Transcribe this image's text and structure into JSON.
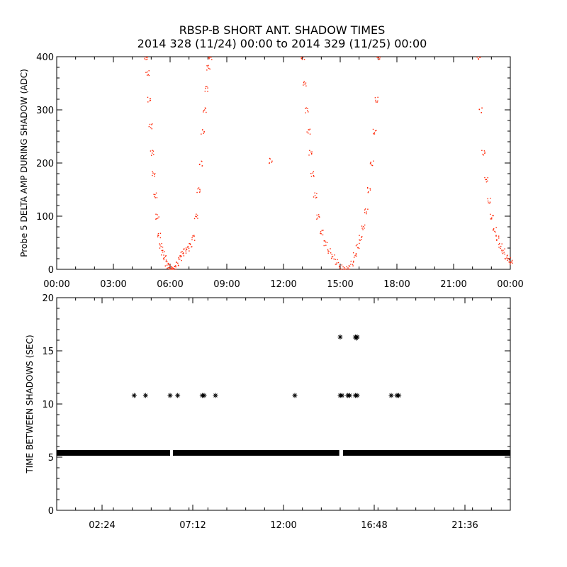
{
  "title_line1": "RBSP-B SHORT ANT. SHADOW TIMES",
  "title_line2": "2014 328 (11/24) 00:00 to 2014 329 (11/25) 00:00",
  "colors": {
    "shadow_points": "#ff2200",
    "interval_marks": "#000000"
  },
  "chart_data": [
    {
      "type": "scatter",
      "ylabel": "Probe 5 DELTA AMP DURING SHADOW (ADC)",
      "xlabel": "",
      "xlim": [
        0,
        24
      ],
      "ylim": [
        0,
        400
      ],
      "x_ticks": [
        "00:00",
        "03:00",
        "06:00",
        "09:00",
        "12:00",
        "15:00",
        "18:00",
        "21:00",
        "00:00"
      ],
      "y_ticks": [
        "0",
        "100",
        "200",
        "300",
        "400"
      ],
      "grid": false,
      "x_units": "hours since 2014-11-24 00:00",
      "series": [
        {
          "marker": "dot",
          "color": "#ff2200",
          "x": [
            4.7,
            4.78,
            4.86,
            4.94,
            5.02,
            5.1,
            5.2,
            5.3,
            5.4,
            5.5,
            5.6,
            5.7,
            5.8,
            5.9,
            6.0,
            6.1,
            6.2,
            6.35,
            6.5,
            6.62,
            6.75,
            6.9,
            7.05,
            7.2,
            7.35,
            7.48,
            7.6,
            7.7,
            7.8,
            7.9,
            8.0,
            8.1,
            11.3,
            13.0,
            13.1,
            13.2,
            13.3,
            13.4,
            13.5,
            13.65,
            13.8,
            14.0,
            14.2,
            14.4,
            14.6,
            14.8,
            15.0,
            15.2,
            15.4,
            15.6,
            15.75,
            15.9,
            16.05,
            16.2,
            16.35,
            16.5,
            16.65,
            16.8,
            16.9,
            17.0,
            22.3,
            22.4,
            22.55,
            22.7,
            22.85,
            23.0,
            23.15,
            23.3,
            23.45,
            23.6,
            23.75,
            23.9,
            24.0
          ],
          "y": [
            400,
            370,
            320,
            270,
            220,
            180,
            140,
            100,
            65,
            45,
            32,
            22,
            12,
            5,
            2,
            0,
            3,
            10,
            22,
            30,
            35,
            40,
            45,
            60,
            100,
            150,
            200,
            260,
            300,
            340,
            380,
            400,
            205,
            400,
            350,
            300,
            260,
            220,
            180,
            140,
            100,
            70,
            50,
            35,
            25,
            15,
            5,
            1,
            3,
            12,
            28,
            45,
            60,
            80,
            110,
            150,
            200,
            260,
            320,
            400,
            400,
            300,
            220,
            170,
            130,
            100,
            75,
            60,
            45,
            35,
            25,
            18,
            15
          ]
        }
      ]
    },
    {
      "type": "scatter",
      "ylabel": "TIME BETWEEN SHADOWS (SEC)",
      "xlabel": "",
      "xlim": [
        0,
        24
      ],
      "ylim": [
        0,
        20
      ],
      "x_ticks": [
        "02:24",
        "07:12",
        "12:00",
        "16:48",
        "21:36"
      ],
      "y_ticks": [
        "0",
        "5",
        "10",
        "15",
        "20"
      ],
      "grid": false,
      "x_units": "hours since 2014-11-24 00:00",
      "baseline": {
        "y": 5.4,
        "segments": [
          [
            0.0,
            6.0
          ],
          [
            6.15,
            14.95
          ],
          [
            15.15,
            24.0
          ]
        ]
      },
      "series": [
        {
          "marker": "asterisk",
          "color": "#000000",
          "x": [
            4.1,
            4.7,
            6.0,
            6.4,
            7.7,
            7.8,
            8.4,
            12.6,
            15.0,
            15.1,
            15.4,
            15.5,
            15.8,
            15.9,
            17.7,
            18.0,
            18.1,
            15.0,
            15.8,
            15.9,
            15.85
          ],
          "y": [
            10.8,
            10.8,
            10.8,
            10.8,
            10.8,
            10.8,
            10.8,
            10.8,
            10.8,
            10.8,
            10.8,
            10.8,
            10.8,
            10.8,
            10.8,
            10.8,
            10.8,
            16.3,
            16.3,
            16.3,
            16.2
          ]
        }
      ]
    }
  ]
}
